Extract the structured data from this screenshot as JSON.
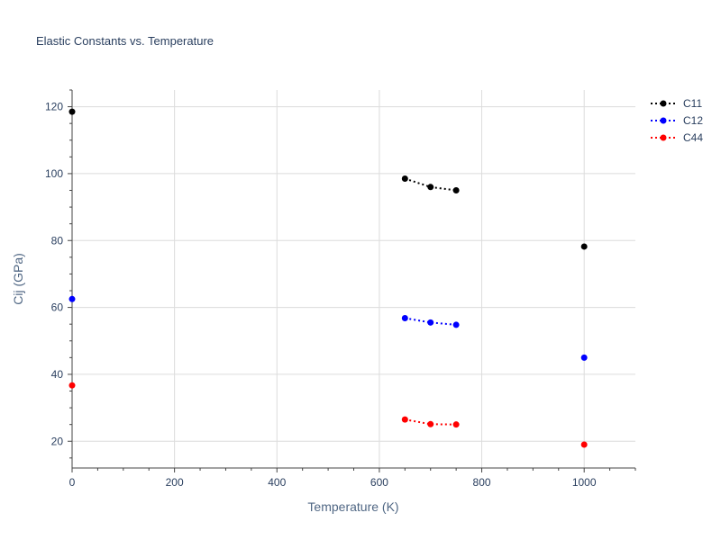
{
  "chart_data": {
    "type": "scatter",
    "title": "Elastic Constants vs. Temperature",
    "xlabel": "Temperature (K)",
    "ylabel": "Cij (GPa)",
    "xlim": [
      0,
      1100
    ],
    "ylim": [
      12,
      125
    ],
    "xticks": [
      0,
      200,
      400,
      600,
      800,
      1000
    ],
    "yticks": [
      20,
      40,
      60,
      80,
      100,
      120
    ],
    "grid": true,
    "legend_position": "top-right",
    "series": [
      {
        "name": "C11",
        "color": "#000000",
        "line_style": "dotted",
        "segments": [
          [
            {
              "x": 0,
              "y": 118.5
            }
          ],
          [
            {
              "x": 650,
              "y": 98.5
            },
            {
              "x": 700,
              "y": 96
            },
            {
              "x": 750,
              "y": 95
            }
          ],
          [
            {
              "x": 1000,
              "y": 78.2
            }
          ]
        ]
      },
      {
        "name": "C12",
        "color": "#0000ff",
        "line_style": "dotted",
        "segments": [
          [
            {
              "x": 0,
              "y": 62.5
            }
          ],
          [
            {
              "x": 650,
              "y": 56.8
            },
            {
              "x": 700,
              "y": 55.5
            },
            {
              "x": 750,
              "y": 54.8
            }
          ],
          [
            {
              "x": 1000,
              "y": 45
            }
          ]
        ]
      },
      {
        "name": "C44",
        "color": "#ff0000",
        "line_style": "dotted",
        "segments": [
          [
            {
              "x": 0,
              "y": 36.7
            }
          ],
          [
            {
              "x": 650,
              "y": 26.5
            },
            {
              "x": 700,
              "y": 25.1
            },
            {
              "x": 750,
              "y": 25
            }
          ],
          [
            {
              "x": 1000,
              "y": 19
            }
          ]
        ]
      }
    ]
  }
}
